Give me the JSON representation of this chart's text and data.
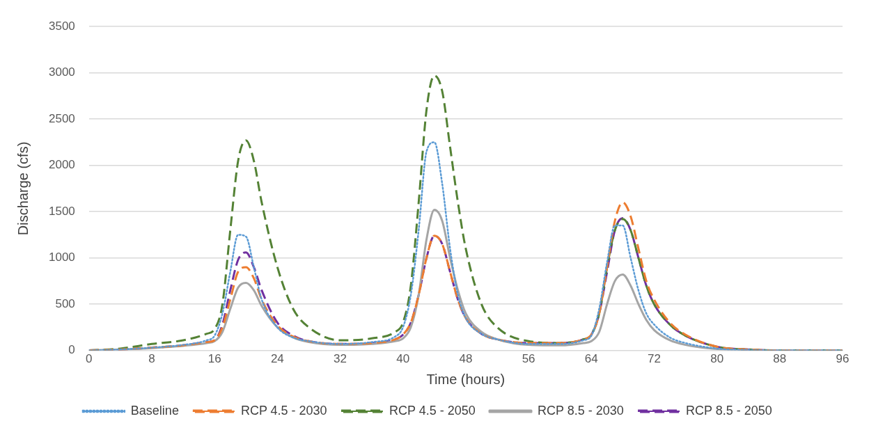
{
  "chart_data": {
    "type": "line",
    "xlabel": "Time (hours)",
    "ylabel": "Discharge (cfs)",
    "x": [
      0,
      4,
      8,
      12,
      15,
      16,
      17,
      18,
      19,
      20,
      21,
      22,
      24,
      26,
      28,
      32,
      36,
      39,
      40,
      41,
      42,
      43,
      44,
      45,
      46,
      47,
      48,
      50,
      52,
      56,
      60,
      63,
      64,
      65,
      66,
      67,
      68,
      69,
      70,
      71,
      72,
      74,
      76,
      80,
      84,
      88,
      96
    ],
    "xlim": [
      0,
      96
    ],
    "xticks": [
      0,
      8,
      16,
      24,
      32,
      40,
      48,
      56,
      64,
      72,
      80,
      88,
      96
    ],
    "ylim": [
      0,
      3500
    ],
    "yticks": [
      0,
      500,
      1000,
      1500,
      2000,
      2500,
      3000,
      3500
    ],
    "grid": "y",
    "legend": "bottom",
    "marker": "none",
    "series": [
      {
        "name": "Baseline",
        "color": "#5b9bd5",
        "line_style": "dotted",
        "values": [
          0,
          10,
          30,
          60,
          110,
          160,
          400,
          850,
          1250,
          1230,
          900,
          550,
          250,
          140,
          100,
          70,
          90,
          150,
          250,
          600,
          1300,
          2150,
          2250,
          1800,
          1100,
          600,
          350,
          180,
          120,
          70,
          70,
          110,
          160,
          450,
          950,
          1350,
          1350,
          1000,
          650,
          400,
          280,
          140,
          80,
          20,
          5,
          0,
          0
        ]
      },
      {
        "name": "RCP 4.5 - 2030",
        "color": "#ed7d31",
        "line_style": "dashed",
        "values": [
          0,
          10,
          30,
          55,
          90,
          110,
          250,
          550,
          850,
          900,
          780,
          550,
          270,
          150,
          100,
          70,
          80,
          120,
          170,
          300,
          600,
          1000,
          1240,
          1150,
          850,
          550,
          350,
          180,
          120,
          80,
          80,
          120,
          170,
          400,
          900,
          1400,
          1600,
          1450,
          1100,
          750,
          550,
          300,
          170,
          40,
          10,
          0,
          0
        ]
      },
      {
        "name": "RCP 4.5 - 2050",
        "color": "#548235",
        "line_style": "dashed",
        "values": [
          0,
          20,
          70,
          110,
          180,
          230,
          500,
          1300,
          2050,
          2270,
          2050,
          1600,
          900,
          450,
          250,
          110,
          130,
          200,
          300,
          700,
          1600,
          2600,
          2970,
          2800,
          2200,
          1600,
          1100,
          500,
          250,
          100,
          80,
          120,
          170,
          400,
          900,
          1300,
          1420,
          1300,
          1000,
          700,
          500,
          280,
          160,
          40,
          10,
          0,
          0
        ]
      },
      {
        "name": "RCP 8.5 - 2030",
        "color": "#a5a5a5",
        "line_style": "solid",
        "values": [
          0,
          10,
          25,
          50,
          80,
          100,
          200,
          450,
          680,
          730,
          650,
          480,
          250,
          140,
          90,
          60,
          70,
          100,
          130,
          250,
          600,
          1200,
          1520,
          1400,
          1000,
          650,
          400,
          200,
          120,
          60,
          55,
          80,
          100,
          200,
          500,
          750,
          820,
          700,
          500,
          330,
          220,
          110,
          60,
          15,
          5,
          0,
          0
        ]
      },
      {
        "name": "RCP 8.5 - 2050",
        "color": "#7030a0",
        "line_style": "dashed",
        "values": [
          0,
          10,
          30,
          55,
          90,
          110,
          280,
          650,
          980,
          1060,
          900,
          650,
          300,
          160,
          100,
          70,
          80,
          120,
          170,
          300,
          600,
          1000,
          1240,
          1150,
          850,
          550,
          350,
          180,
          120,
          80,
          80,
          120,
          170,
          400,
          850,
          1300,
          1430,
          1300,
          1000,
          700,
          500,
          280,
          160,
          40,
          10,
          0,
          0
        ]
      }
    ]
  }
}
